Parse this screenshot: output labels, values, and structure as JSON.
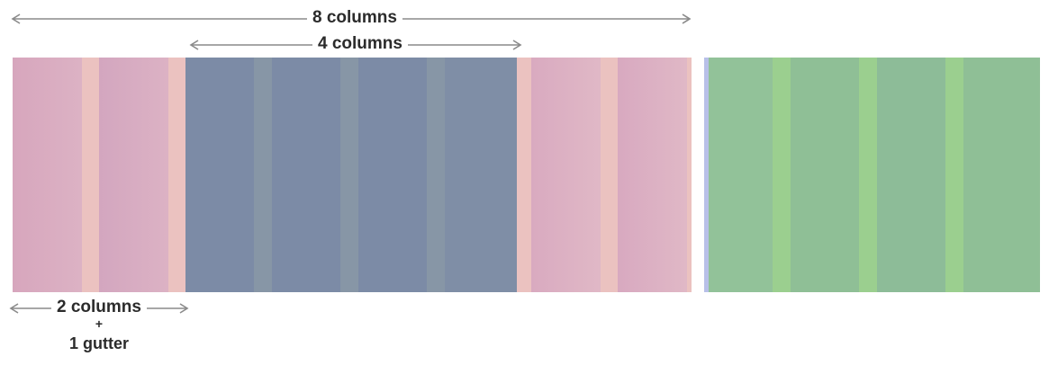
{
  "annotations": {
    "eight_columns": "8 columns",
    "four_columns": "4 columns",
    "two_columns": "2 columns",
    "plus": "+",
    "one_gutter": "1 gutter"
  },
  "colors": {
    "pink_column": "#d8a9c0",
    "pink_gutter": "#ebc2c0",
    "slate_column": "#7c8ba6",
    "slate_gutter": "#8796a6",
    "green_column": "#8fbf96",
    "green_gutter": "#9bcf8f",
    "divider_blue": "#b8c0e8",
    "arrow_gray": "#8a8a8a"
  }
}
